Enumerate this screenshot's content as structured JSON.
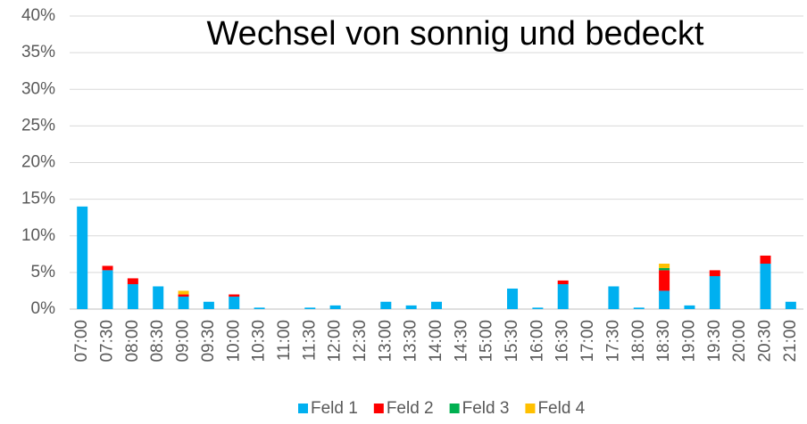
{
  "chart_data": {
    "type": "stacked_bar",
    "title": "Wechsel von sonnig und bedeckt",
    "categories": [
      "07:00",
      "07:30",
      "08:00",
      "08:30",
      "09:00",
      "09:30",
      "10:00",
      "10:30",
      "11:00",
      "11:30",
      "12:00",
      "12:30",
      "13:00",
      "13:30",
      "14:00",
      "14:30",
      "15:00",
      "15:30",
      "16:00",
      "16:30",
      "17:00",
      "17:30",
      "18:00",
      "18:30",
      "19:00",
      "19:30",
      "20:00",
      "20:30",
      "21:00"
    ],
    "series": [
      {
        "name": "Feld 1",
        "color": "#00b0f0",
        "values": [
          14,
          5.3,
          3.4,
          3.1,
          1.7,
          1.0,
          1.7,
          0.2,
          0,
          0.2,
          0.5,
          0,
          1.0,
          0.5,
          1.0,
          0,
          0,
          2.8,
          0.2,
          3.4,
          0,
          3.1,
          0.2,
          2.5,
          0.5,
          4.5,
          0,
          6.2,
          1.0
        ]
      },
      {
        "name": "Feld 2",
        "color": "#ff0000",
        "values": [
          0,
          0.6,
          0.8,
          0,
          0.3,
          0,
          0.3,
          0,
          0,
          0,
          0,
          0,
          0,
          0,
          0,
          0,
          0,
          0,
          0,
          0.5,
          0,
          0,
          0,
          2.8,
          0,
          0.8,
          0,
          1.1,
          0
        ]
      },
      {
        "name": "Feld 3",
        "color": "#00b050",
        "values": [
          0,
          0,
          0,
          0,
          0,
          0,
          0,
          0,
          0,
          0,
          0,
          0,
          0,
          0,
          0,
          0,
          0,
          0,
          0,
          0,
          0,
          0,
          0,
          0.3,
          0,
          0,
          0,
          0,
          0
        ]
      },
      {
        "name": "Feld 4",
        "color": "#ffc000",
        "values": [
          0,
          0,
          0,
          0,
          0.5,
          0,
          0,
          0,
          0,
          0,
          0,
          0,
          0,
          0,
          0,
          0,
          0,
          0,
          0,
          0,
          0,
          0,
          0,
          0.6,
          0,
          0,
          0,
          0,
          0
        ]
      }
    ],
    "ylim": [
      0,
      40
    ],
    "yticks": [
      {
        "value": 0,
        "label": "0%"
      },
      {
        "value": 5,
        "label": "5%"
      },
      {
        "value": 10,
        "label": "10%"
      },
      {
        "value": 15,
        "label": "15%"
      },
      {
        "value": 20,
        "label": "20%"
      },
      {
        "value": 25,
        "label": "25%"
      },
      {
        "value": 30,
        "label": "30%"
      },
      {
        "value": 35,
        "label": "35%"
      },
      {
        "value": 40,
        "label": "40%"
      }
    ],
    "grid": true,
    "legend": "bottom"
  }
}
